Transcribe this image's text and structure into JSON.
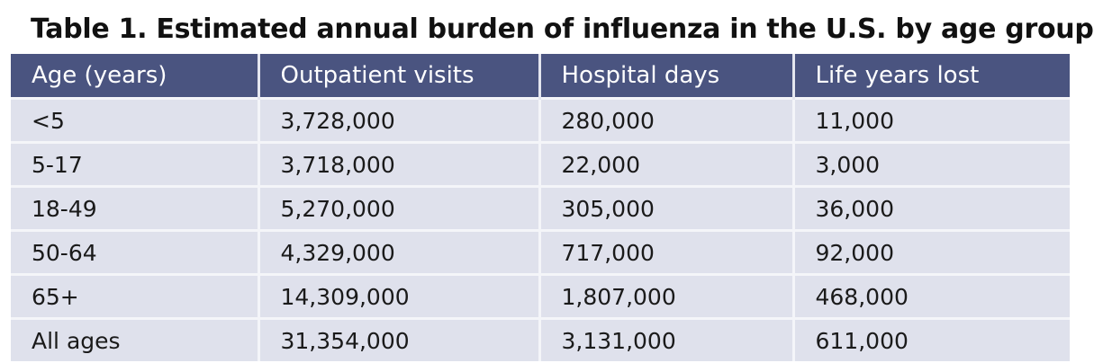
{
  "title": "Table 1. Estimated annual burden of influenza in the U.S. by age group",
  "table": {
    "headers": [
      "Age (years)",
      "Outpatient visits",
      "Hospital days",
      "Life years lost"
    ],
    "rows": [
      [
        "<5",
        "3,728,000",
        "280,000",
        "11,000"
      ],
      [
        "5-17",
        "3,718,000",
        "22,000",
        "3,000"
      ],
      [
        "18-49",
        "5,270,000",
        "305,000",
        "36,000"
      ],
      [
        "50-64",
        "4,329,000",
        "717,000",
        "92,000"
      ],
      [
        "65+",
        "14,309,000",
        "1,807,000",
        "468,000"
      ],
      [
        "All ages",
        "31,354,000",
        "3,131,000",
        "611,000"
      ]
    ]
  },
  "colors": {
    "header_bg": "#4a5480",
    "row_bg": "#dfe1ec"
  }
}
